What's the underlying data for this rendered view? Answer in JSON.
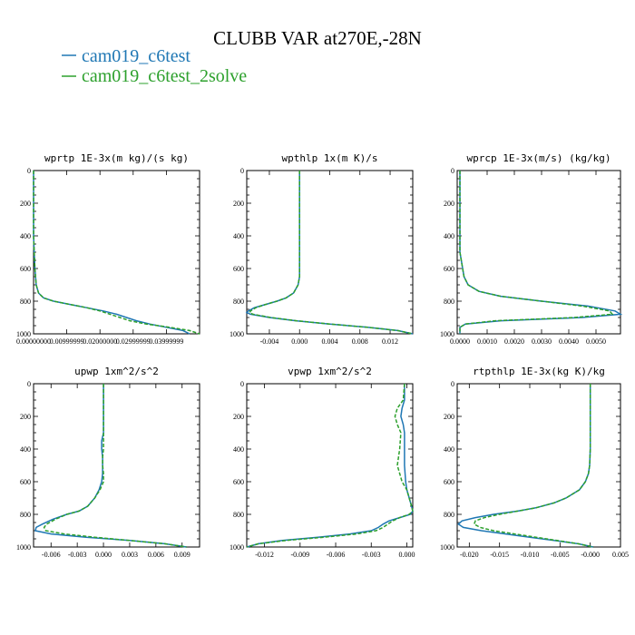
{
  "title": "CLUBB VAR at270E,-28N",
  "legend": [
    {
      "label": "cam019_c6test",
      "color": "#1f77b4",
      "dash": "solid"
    },
    {
      "label": "cam019_c6test_2solve",
      "color": "#2ca02c",
      "dash": "dashed"
    }
  ],
  "chart_data": [
    {
      "type": "line",
      "title": "wprtp  1E-3x(m kg)/(s kg)",
      "xlim": [
        0.0,
        0.05
      ],
      "xticks": [
        0.0,
        0.01,
        0.02,
        0.03,
        0.04
      ],
      "xticklabels": [
        "0.00000000",
        "0.00999999",
        "0.02000000",
        "0.02999999",
        "0.03999999"
      ],
      "ylim": [
        1000,
        0
      ],
      "yticks": [
        0,
        200,
        400,
        600,
        800,
        1000
      ],
      "series": [
        {
          "name": "cam019_c6test",
          "y": [
            0,
            100,
            200,
            300,
            400,
            500,
            600,
            700,
            750,
            780,
            800,
            820,
            840,
            860,
            880,
            900,
            920,
            940,
            960,
            980,
            1000
          ],
          "x": [
            0.0,
            0.0,
            0.0,
            0.0,
            0.0,
            0.0002,
            0.0004,
            0.0008,
            0.0015,
            0.003,
            0.006,
            0.011,
            0.016,
            0.021,
            0.025,
            0.028,
            0.031,
            0.035,
            0.04,
            0.045,
            0.047
          ]
        },
        {
          "name": "cam019_c6test_2solve",
          "y": [
            0,
            100,
            200,
            300,
            400,
            500,
            600,
            700,
            750,
            780,
            800,
            820,
            840,
            860,
            880,
            900,
            920,
            940,
            960,
            980,
            1000
          ],
          "x": [
            0.0,
            0.0,
            0.0,
            0.0,
            0.0,
            0.0002,
            0.0004,
            0.0008,
            0.0015,
            0.003,
            0.006,
            0.011,
            0.016,
            0.02,
            0.023,
            0.026,
            0.029,
            0.034,
            0.041,
            0.047,
            0.05
          ]
        }
      ]
    },
    {
      "type": "line",
      "title": "wpthlp  1x(m K)/s",
      "xlim": [
        -0.007,
        0.015
      ],
      "xticks": [
        -0.004,
        0.0,
        0.004,
        0.008,
        0.012
      ],
      "xticklabels": [
        "-0.004",
        "0.000",
        "0.004",
        "0.008",
        "0.012"
      ],
      "ylim": [
        1000,
        0
      ],
      "yticks": [
        0,
        200,
        400,
        600,
        800,
        1000
      ],
      "series": [
        {
          "name": "cam019_c6test",
          "y": [
            0,
            100,
            200,
            300,
            400,
            500,
            600,
            650,
            700,
            750,
            780,
            800,
            820,
            840,
            860,
            870,
            880,
            900,
            920,
            940,
            960,
            980,
            1000
          ],
          "x": [
            0.0,
            0.0,
            0.0,
            0.0,
            0.0,
            0.0,
            0.0,
            0.0,
            -0.0002,
            -0.0008,
            -0.0018,
            -0.003,
            -0.0045,
            -0.006,
            -0.0068,
            -0.007,
            -0.0065,
            -0.004,
            -0.0005,
            0.004,
            0.009,
            0.013,
            0.015
          ]
        },
        {
          "name": "cam019_c6test_2solve",
          "y": [
            0,
            100,
            200,
            300,
            400,
            500,
            600,
            650,
            700,
            750,
            780,
            800,
            820,
            840,
            860,
            870,
            880,
            900,
            920,
            940,
            960,
            980,
            1000
          ],
          "x": [
            0.0,
            0.0,
            0.0,
            0.0,
            0.0,
            0.0,
            0.0,
            0.0,
            -0.0002,
            -0.0008,
            -0.0018,
            -0.003,
            -0.0045,
            -0.0058,
            -0.0065,
            -0.0066,
            -0.0062,
            -0.0038,
            -0.0004,
            0.004,
            0.009,
            0.013,
            0.015
          ]
        }
      ]
    },
    {
      "type": "line",
      "title": "wprcp  1E-3x(m/s) (kg/kg)",
      "xlim": [
        -0.0001,
        0.0059
      ],
      "xticks": [
        0.0,
        0.001,
        0.002,
        0.003,
        0.004,
        0.005
      ],
      "xticklabels": [
        "0.0000",
        "0.0010",
        "0.0020",
        "0.0030",
        "0.0040",
        "0.0050"
      ],
      "ylim": [
        1000,
        0
      ],
      "yticks": [
        0,
        200,
        400,
        600,
        800,
        1000
      ],
      "series": [
        {
          "name": "cam019_c6test",
          "y": [
            0,
            100,
            200,
            300,
            400,
            500,
            600,
            650,
            700,
            740,
            770,
            800,
            830,
            860,
            880,
            900,
            920,
            940,
            960,
            980,
            1000
          ],
          "x": [
            0.0,
            0.0,
            0.0,
            0.0,
            0.0,
            0.0,
            0.0001,
            0.00015,
            0.0003,
            0.0007,
            0.0015,
            0.003,
            0.0047,
            0.0057,
            0.0059,
            0.0045,
            0.0015,
            0.0002,
            0.0,
            0.0,
            0.0
          ]
        },
        {
          "name": "cam019_c6test_2solve",
          "y": [
            0,
            100,
            200,
            300,
            400,
            500,
            600,
            650,
            700,
            740,
            770,
            800,
            830,
            860,
            880,
            900,
            920,
            940,
            960,
            980,
            1000
          ],
          "x": [
            0.0,
            0.0,
            0.0,
            0.0,
            0.0,
            0.0,
            0.0001,
            0.00015,
            0.0003,
            0.0007,
            0.0015,
            0.003,
            0.0045,
            0.0055,
            0.0056,
            0.0042,
            0.0013,
            0.0002,
            0.0,
            0.0,
            0.0
          ]
        }
      ]
    },
    {
      "type": "line",
      "title": "upwp  1xm^2/s^2",
      "xlim": [
        -0.008,
        0.011
      ],
      "xticks": [
        -0.006,
        -0.003,
        0.0,
        0.003,
        0.006,
        0.009
      ],
      "xticklabels": [
        "-0.006",
        "-0.003",
        "0.000",
        "0.003",
        "0.006",
        "0.009"
      ],
      "ylim": [
        1000,
        0
      ],
      "yticks": [
        0,
        200,
        400,
        600,
        800,
        1000
      ],
      "series": [
        {
          "name": "cam019_c6test",
          "y": [
            0,
            100,
            200,
            300,
            350,
            400,
            450,
            500,
            550,
            600,
            650,
            700,
            750,
            780,
            800,
            830,
            860,
            880,
            900,
            920,
            940,
            960,
            980,
            1000
          ],
          "x": [
            0.0,
            0.0,
            0.0,
            0.0,
            -0.0002,
            -0.0002,
            -0.0001,
            -0.0001,
            -0.0001,
            -0.0002,
            -0.0005,
            -0.001,
            -0.0018,
            -0.0028,
            -0.0042,
            -0.0058,
            -0.007,
            -0.0077,
            -0.0078,
            -0.006,
            -0.002,
            0.003,
            0.007,
            0.0095
          ]
        },
        {
          "name": "cam019_c6test_2solve",
          "y": [
            0,
            100,
            200,
            300,
            350,
            400,
            450,
            500,
            550,
            600,
            650,
            700,
            750,
            780,
            800,
            830,
            860,
            880,
            900,
            920,
            940,
            960,
            980,
            1000
          ],
          "x": [
            0.0,
            0.0,
            0.0,
            0.0,
            0.0,
            0.0,
            -0.0001,
            -0.0001,
            0.0,
            0.0,
            -0.0004,
            -0.001,
            -0.0018,
            -0.0028,
            -0.0042,
            -0.0055,
            -0.0065,
            -0.0068,
            -0.0066,
            -0.0045,
            -0.001,
            0.003,
            0.007,
            0.0095
          ]
        }
      ]
    },
    {
      "type": "line",
      "title": "vpwp  1xm^2/s^2",
      "xlim": [
        -0.0135,
        0.0005
      ],
      "xticks": [
        -0.012,
        -0.009,
        -0.006,
        -0.003,
        0.0
      ],
      "xticklabels": [
        "-0.012",
        "-0.009",
        "-0.006",
        "-0.003",
        "0.000"
      ],
      "ylim": [
        1000,
        0
      ],
      "yticks": [
        0,
        200,
        400,
        600,
        800,
        1000
      ],
      "series": [
        {
          "name": "cam019_c6test",
          "y": [
            0,
            100,
            150,
            200,
            250,
            300,
            400,
            500,
            600,
            650,
            700,
            750,
            780,
            800,
            820,
            840,
            860,
            880,
            900,
            920,
            940,
            960,
            980,
            1000
          ],
          "x": [
            -0.0002,
            -0.0002,
            -0.0004,
            -0.0005,
            -0.0003,
            -0.0002,
            -0.0002,
            -0.0002,
            -0.0001,
            0.0,
            0.0002,
            0.0004,
            0.0005,
            0.0003,
            -0.0006,
            -0.0015,
            -0.002,
            -0.0024,
            -0.003,
            -0.0048,
            -0.0075,
            -0.0105,
            -0.0125,
            -0.0135
          ]
        },
        {
          "name": "cam019_c6test_2solve",
          "y": [
            0,
            100,
            150,
            200,
            250,
            300,
            400,
            500,
            600,
            650,
            700,
            750,
            780,
            800,
            820,
            840,
            860,
            880,
            900,
            920,
            940,
            960,
            980,
            1000
          ],
          "x": [
            -0.0002,
            -0.0003,
            -0.0008,
            -0.001,
            -0.0008,
            -0.0005,
            -0.0006,
            -0.0008,
            -0.0004,
            0.0,
            0.0002,
            0.0004,
            0.0005,
            0.0002,
            -0.0006,
            -0.0012,
            -0.0016,
            -0.002,
            -0.0026,
            -0.0042,
            -0.007,
            -0.0102,
            -0.0125,
            -0.0135
          ]
        }
      ]
    },
    {
      "type": "line",
      "title": "rtpthlp  1E-3x(kg K)/kg",
      "xlim": [
        -0.022,
        0.005
      ],
      "xticks": [
        -0.02,
        -0.015,
        -0.01,
        -0.005,
        0.0,
        0.005
      ],
      "xticklabels": [
        "-0.020",
        "-0.015",
        "-0.010",
        "-0.005",
        "-0.000",
        "0.005"
      ],
      "ylim": [
        1000,
        0
      ],
      "yticks": [
        0,
        200,
        400,
        600,
        800,
        1000
      ],
      "series": [
        {
          "name": "cam019_c6test",
          "y": [
            0,
            100,
            200,
            300,
            400,
            500,
            550,
            600,
            650,
            700,
            730,
            760,
            780,
            800,
            820,
            840,
            860,
            880,
            900,
            920,
            940,
            960,
            980,
            1000
          ],
          "x": [
            0.0,
            0.0,
            0.0,
            0.0,
            0.0,
            -0.0001,
            -0.0003,
            -0.0008,
            -0.0018,
            -0.004,
            -0.006,
            -0.009,
            -0.012,
            -0.016,
            -0.019,
            -0.0212,
            -0.0218,
            -0.021,
            -0.018,
            -0.014,
            -0.01,
            -0.006,
            -0.002,
            0.0005
          ]
        },
        {
          "name": "cam019_c6test_2solve",
          "y": [
            0,
            100,
            200,
            300,
            400,
            500,
            550,
            600,
            650,
            700,
            730,
            760,
            780,
            800,
            820,
            840,
            860,
            880,
            900,
            920,
            940,
            960,
            980,
            1000
          ],
          "x": [
            0.0,
            0.0,
            0.0,
            0.0,
            0.0,
            -0.0001,
            -0.0003,
            -0.0008,
            -0.0018,
            -0.004,
            -0.006,
            -0.009,
            -0.012,
            -0.015,
            -0.0175,
            -0.019,
            -0.0192,
            -0.0182,
            -0.016,
            -0.0125,
            -0.009,
            -0.0055,
            -0.002,
            0.0005
          ]
        }
      ]
    }
  ]
}
